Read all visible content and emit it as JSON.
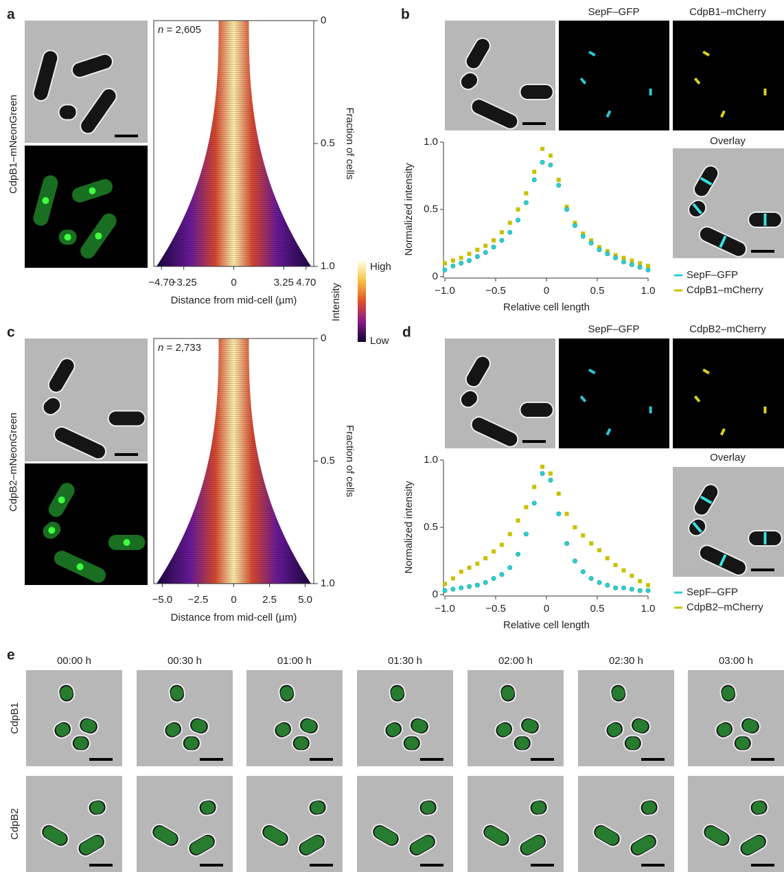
{
  "figure": {
    "panel_a": {
      "label": "a",
      "strain": "CdpB1–mNeonGreen",
      "n_symbol": "n",
      "n_value": " = 2,605"
    },
    "panel_b": {
      "label": "b",
      "channels": [
        "SepF–GFP",
        "CdpB1–mCherry"
      ],
      "overlay": "Overlay"
    },
    "panel_c": {
      "label": "c",
      "strain": "CdpB2–mNeonGreen",
      "n_symbol": "n",
      "n_value": " = 2,733"
    },
    "panel_d": {
      "label": "d",
      "channels": [
        "SepF–GFP",
        "CdpB2–mCherry"
      ],
      "overlay": "Overlay"
    },
    "colorbar": {
      "label": "Intensity",
      "high": "High",
      "low": "Low"
    },
    "panel_e": {
      "label": "e",
      "times": [
        "00:00 h",
        "00:30 h",
        "01:00 h",
        "01:30 h",
        "02:00 h",
        "02:30 h",
        "03:00 h"
      ],
      "rows": [
        "CdpB1",
        "CdpB2"
      ]
    }
  },
  "chart_data": [
    {
      "type": "demograph",
      "xlabel": "Distance from mid-cell (µm)",
      "ylabel": "Fraction of cells",
      "y_inverted": true,
      "xlim": [
        -5.2,
        5.2
      ],
      "xticks": [
        {
          "value": -4.7,
          "label": "−4.70"
        },
        {
          "value": -3.25,
          "label": "−3.25"
        },
        0,
        3.25,
        {
          "value": 4.7,
          "label": "4.70"
        }
      ],
      "ylim": [
        0,
        1
      ],
      "yticks": [
        0,
        0.5,
        {
          "value": 1,
          "label": "1.0"
        }
      ]
    },
    {
      "type": "scatter",
      "xlabel": "Relative cell length",
      "ylabel": "Normalized intensity",
      "xlim": [
        -1,
        1
      ],
      "xticks": [
        {
          "value": -1,
          "label": "−1.0"
        },
        {
          "value": -0.5,
          "label": "−0.5"
        },
        0,
        0.5,
        {
          "value": 1,
          "label": "1.0"
        }
      ],
      "ylim": [
        0,
        1
      ],
      "yticks": [
        0,
        0.5,
        {
          "value": 1,
          "label": "1.0"
        }
      ],
      "series": [
        {
          "name": "SepF–GFP",
          "color": "#2ccfcf",
          "marker": "circle",
          "x": [
            -1,
            -0.92,
            -0.84,
            -0.76,
            -0.68,
            -0.6,
            -0.52,
            -0.44,
            -0.36,
            -0.28,
            -0.2,
            -0.12,
            -0.04,
            0.04,
            0.12,
            0.2,
            0.28,
            0.36,
            0.44,
            0.52,
            0.6,
            0.68,
            0.76,
            0.84,
            0.92,
            1
          ],
          "y": [
            0.05,
            0.08,
            0.1,
            0.12,
            0.15,
            0.18,
            0.22,
            0.27,
            0.33,
            0.42,
            0.55,
            0.72,
            0.85,
            0.83,
            0.68,
            0.5,
            0.38,
            0.3,
            0.25,
            0.2,
            0.17,
            0.14,
            0.11,
            0.09,
            0.07,
            0.05
          ]
        },
        {
          "name": "CdpB1–mCherry",
          "color": "#c8c000",
          "marker": "square",
          "x": [
            -1,
            -0.92,
            -0.84,
            -0.76,
            -0.68,
            -0.6,
            -0.52,
            -0.44,
            -0.36,
            -0.28,
            -0.2,
            -0.12,
            -0.04,
            0.04,
            0.12,
            0.2,
            0.28,
            0.36,
            0.44,
            0.52,
            0.6,
            0.68,
            0.76,
            0.84,
            0.92,
            1
          ],
          "y": [
            0.1,
            0.12,
            0.14,
            0.17,
            0.2,
            0.23,
            0.27,
            0.33,
            0.4,
            0.5,
            0.62,
            0.78,
            0.95,
            0.9,
            0.72,
            0.52,
            0.4,
            0.32,
            0.27,
            0.22,
            0.19,
            0.16,
            0.14,
            0.12,
            0.1,
            0.08
          ]
        }
      ]
    },
    {
      "type": "demograph",
      "xlabel": "Distance from mid-cell (µm)",
      "ylabel": "Fraction of cells",
      "y_inverted": true,
      "xlim": [
        -5.6,
        5.6
      ],
      "xticks": [
        {
          "value": -5,
          "label": "−5.0"
        },
        {
          "value": -2.5,
          "label": "−2.5"
        },
        0,
        2.5,
        {
          "value": 5,
          "label": "5.0"
        }
      ],
      "ylim": [
        0,
        1
      ],
      "yticks": [
        0,
        0.5,
        {
          "value": 1,
          "label": "1.0"
        }
      ]
    },
    {
      "type": "scatter",
      "xlabel": "Relative cell length",
      "ylabel": "Normalized intensity",
      "xlim": [
        -1,
        1
      ],
      "xticks": [
        {
          "value": -1,
          "label": "−1.0"
        },
        {
          "value": -0.5,
          "label": "−0.5"
        },
        0,
        0.5,
        {
          "value": 1,
          "label": "1.0"
        }
      ],
      "ylim": [
        0,
        1
      ],
      "yticks": [
        0,
        0.5,
        {
          "value": 1,
          "label": "1.0"
        }
      ],
      "series": [
        {
          "name": "SepF–GFP",
          "color": "#2ccfcf",
          "marker": "circle",
          "x": [
            -1,
            -0.92,
            -0.84,
            -0.76,
            -0.68,
            -0.6,
            -0.52,
            -0.44,
            -0.36,
            -0.28,
            -0.2,
            -0.12,
            -0.04,
            0.04,
            0.12,
            0.2,
            0.28,
            0.36,
            0.44,
            0.52,
            0.6,
            0.68,
            0.76,
            0.84,
            0.92,
            1
          ],
          "y": [
            0.03,
            0.04,
            0.05,
            0.06,
            0.07,
            0.09,
            0.12,
            0.15,
            0.2,
            0.3,
            0.45,
            0.68,
            0.9,
            0.85,
            0.6,
            0.38,
            0.25,
            0.17,
            0.12,
            0.09,
            0.07,
            0.05,
            0.05,
            0.04,
            0.03,
            0.03
          ]
        },
        {
          "name": "CdpB2–mCherry",
          "color": "#c8c000",
          "marker": "square",
          "x": [
            -1,
            -0.92,
            -0.84,
            -0.76,
            -0.68,
            -0.6,
            -0.52,
            -0.44,
            -0.36,
            -0.28,
            -0.2,
            -0.12,
            -0.04,
            0.04,
            0.12,
            0.2,
            0.28,
            0.36,
            0.44,
            0.52,
            0.6,
            0.68,
            0.76,
            0.84,
            0.92,
            1
          ],
          "y": [
            0.08,
            0.12,
            0.17,
            0.2,
            0.23,
            0.27,
            0.32,
            0.37,
            0.45,
            0.55,
            0.65,
            0.8,
            0.95,
            0.9,
            0.75,
            0.6,
            0.5,
            0.44,
            0.38,
            0.33,
            0.27,
            0.22,
            0.18,
            0.14,
            0.1,
            0.07
          ]
        }
      ]
    }
  ]
}
